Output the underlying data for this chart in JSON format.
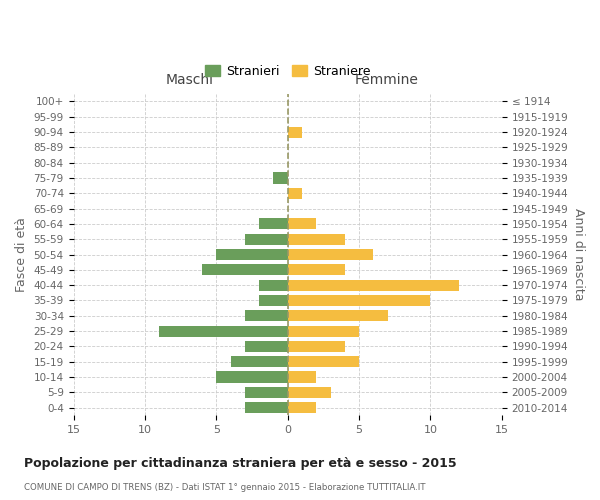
{
  "age_groups": [
    "100+",
    "95-99",
    "90-94",
    "85-89",
    "80-84",
    "75-79",
    "70-74",
    "65-69",
    "60-64",
    "55-59",
    "50-54",
    "45-49",
    "40-44",
    "35-39",
    "30-34",
    "25-29",
    "20-24",
    "15-19",
    "10-14",
    "5-9",
    "0-4"
  ],
  "birth_years": [
    "≤ 1914",
    "1915-1919",
    "1920-1924",
    "1925-1929",
    "1930-1934",
    "1935-1939",
    "1940-1944",
    "1945-1949",
    "1950-1954",
    "1955-1959",
    "1960-1964",
    "1965-1969",
    "1970-1974",
    "1975-1979",
    "1980-1984",
    "1985-1989",
    "1990-1994",
    "1995-1999",
    "2000-2004",
    "2005-2009",
    "2010-2014"
  ],
  "maschi": [
    0,
    0,
    0,
    0,
    0,
    1,
    0,
    0,
    2,
    3,
    5,
    6,
    2,
    2,
    3,
    9,
    3,
    4,
    5,
    3,
    3
  ],
  "femmine": [
    0,
    0,
    1,
    0,
    0,
    0,
    1,
    0,
    2,
    4,
    6,
    4,
    12,
    10,
    7,
    5,
    4,
    5,
    2,
    3,
    2
  ],
  "male_color": "#6a9e5b",
  "female_color": "#f5bd40",
  "background_color": "#ffffff",
  "grid_color": "#cccccc",
  "title": "Popolazione per cittadinanza straniera per età e sesso - 2015",
  "subtitle": "COMUNE DI CAMPO DI TRENS (BZ) - Dati ISTAT 1° gennaio 2015 - Elaborazione TUTTITALIA.IT",
  "xlabel_left": "Maschi",
  "xlabel_right": "Femmine",
  "ylabel_left": "Fasce di età",
  "ylabel_right": "Anni di nascita",
  "legend_male": "Stranieri",
  "legend_female": "Straniere",
  "xlim": 15
}
